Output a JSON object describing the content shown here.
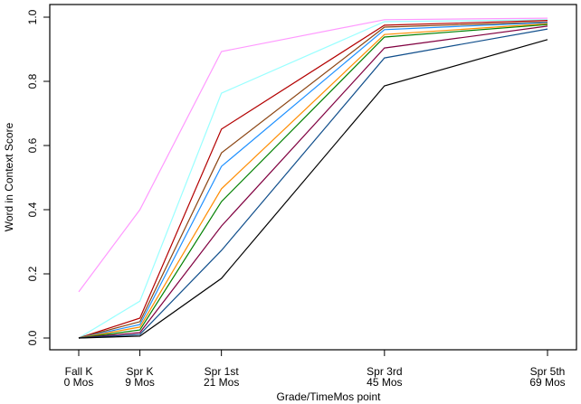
{
  "chart_data": {
    "type": "line",
    "title": "",
    "xlabel": "Grade/TimeMos point",
    "ylabel": "Word in Context Score",
    "x": [
      0,
      9,
      21,
      45,
      69
    ],
    "x_tick_labels": [
      {
        "line1": "Fall K",
        "line2": "0 Mos"
      },
      {
        "line1": "Spr K",
        "line2": "9 Mos"
      },
      {
        "line1": "Spr 1st",
        "line2": "21 Mos"
      },
      {
        "line1": "Spr 3rd",
        "line2": "45 Mos"
      },
      {
        "line1": "Spr 5th",
        "line2": "69 Mos"
      }
    ],
    "y_ticks": [
      "0.0",
      "0.2",
      "0.4",
      "0.6",
      "0.8",
      "1.0"
    ],
    "ylim": [
      0,
      1
    ],
    "grid": false,
    "legend": null,
    "series": [
      {
        "name": "pink",
        "color": "#ff99ff",
        "values": [
          0.144,
          0.4,
          0.893,
          0.992,
          0.997
        ]
      },
      {
        "name": "cyan",
        "color": "#99ffff",
        "values": [
          0.0,
          0.115,
          0.763,
          0.986,
          0.992
        ]
      },
      {
        "name": "darkred",
        "color": "#b30000",
        "values": [
          0.0,
          0.062,
          0.651,
          0.975,
          0.99
        ]
      },
      {
        "name": "brown",
        "color": "#8b4513",
        "values": [
          0.0,
          0.051,
          0.577,
          0.969,
          0.985
        ]
      },
      {
        "name": "blue",
        "color": "#1e90ff",
        "values": [
          0.0,
          0.042,
          0.535,
          0.961,
          0.983
        ]
      },
      {
        "name": "orange",
        "color": "#ff8c00",
        "values": [
          0.0,
          0.034,
          0.465,
          0.946,
          0.98
        ]
      },
      {
        "name": "green",
        "color": "#008000",
        "values": [
          0.0,
          0.025,
          0.425,
          0.938,
          0.977
        ]
      },
      {
        "name": "purple",
        "color": "#800040",
        "values": [
          0.0,
          0.017,
          0.349,
          0.904,
          0.972
        ]
      },
      {
        "name": "navy",
        "color": "#104e8b",
        "values": [
          0.0,
          0.011,
          0.273,
          0.873,
          0.963
        ]
      },
      {
        "name": "black",
        "color": "#000000",
        "values": [
          0.0,
          0.006,
          0.186,
          0.786,
          0.93
        ]
      }
    ]
  }
}
